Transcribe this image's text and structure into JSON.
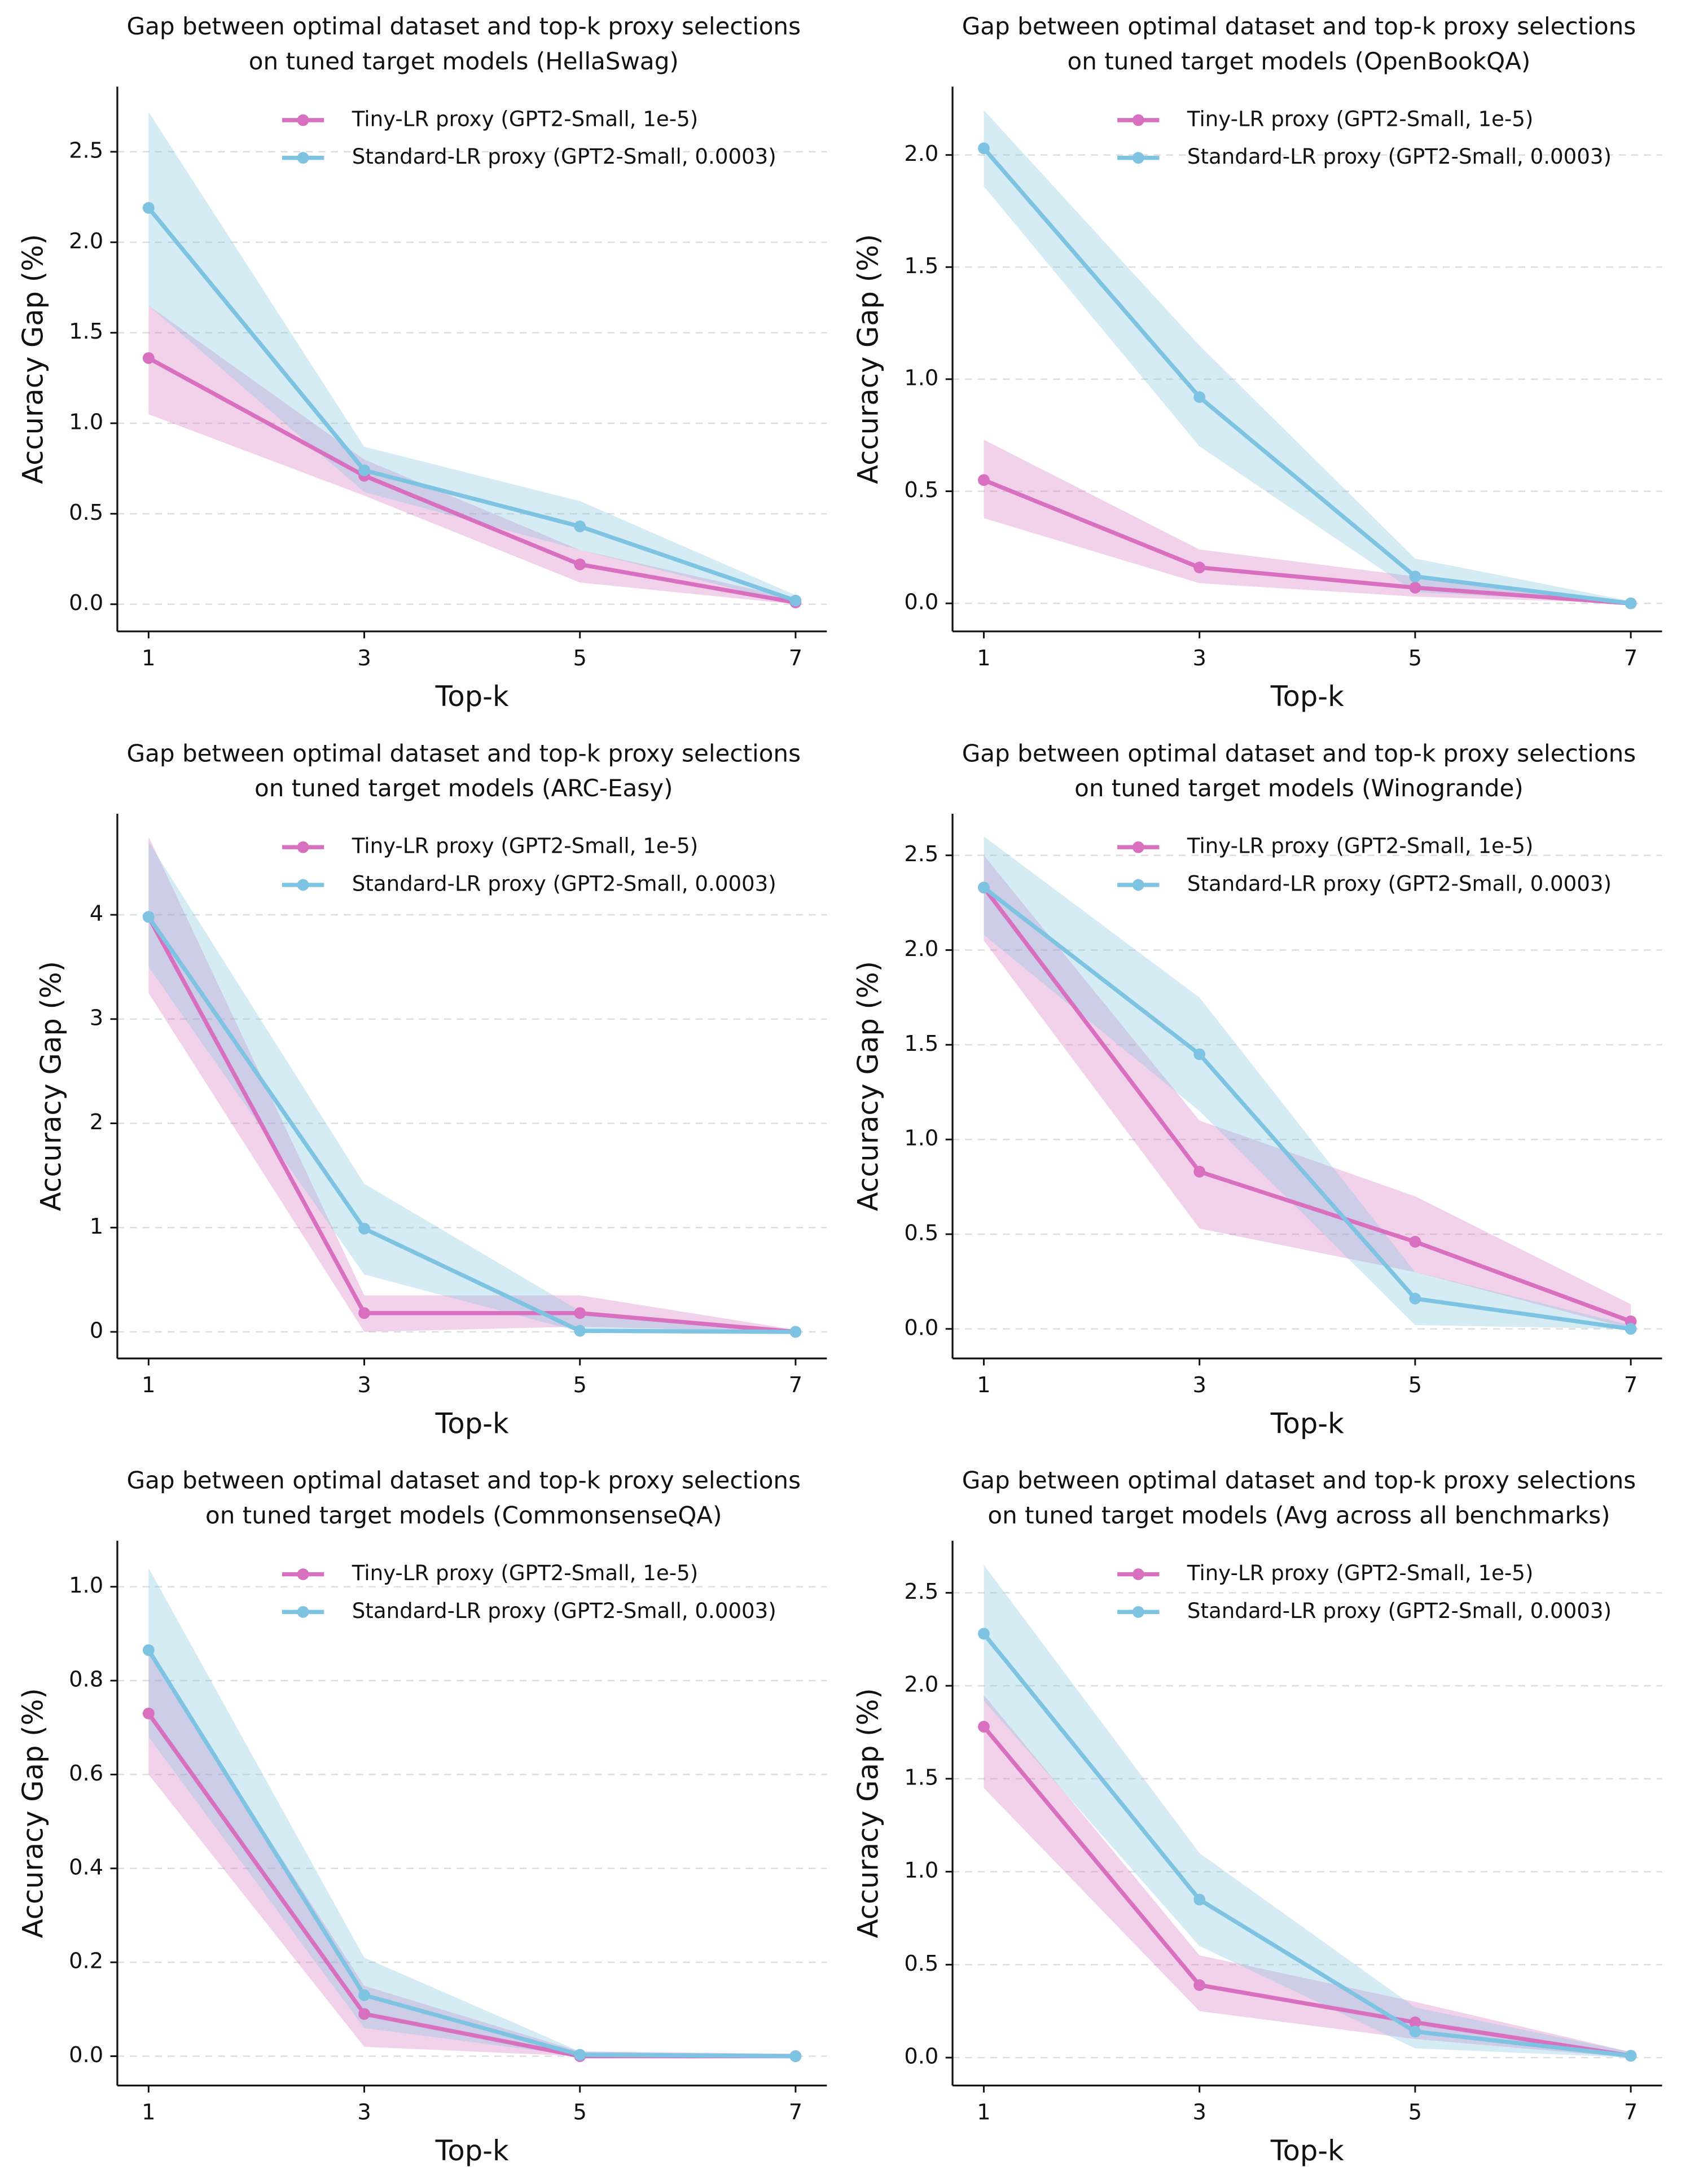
{
  "chart_data": [
    {
      "type": "line",
      "title": [
        "Gap between optimal dataset and top-k proxy selections",
        "on tuned target models (HellaSwag)"
      ],
      "xlabel": "Top-k",
      "ylabel": "Accuracy Gap (%)",
      "legend": "upper center",
      "grid": true,
      "x": [
        1,
        3,
        5,
        7
      ],
      "xlim": [
        0.71,
        7.29
      ],
      "xticks": [
        1,
        3,
        5,
        7
      ],
      "ylim": [
        -0.15,
        2.86
      ],
      "yticks": [
        {
          "value": 0,
          "label": "0.0"
        },
        0.5,
        {
          "value": 1,
          "label": "1.0"
        },
        1.5,
        {
          "value": 2,
          "label": "2.0"
        },
        2.5
      ],
      "series": [
        {
          "name": "Tiny-LR proxy (GPT2-Small, 1e-5)",
          "color": "#d870bf",
          "values": [
            1.36,
            0.71,
            0.22,
            0.01
          ],
          "lower": [
            1.05,
            0.6,
            0.12,
            0
          ],
          "upper": [
            1.65,
            0.8,
            0.3,
            0.03
          ]
        },
        {
          "name": "Standard-LR proxy (GPT2-Small, 0.0003)",
          "color": "#7ec3e1",
          "values": [
            2.19,
            0.74,
            0.43,
            0.02
          ],
          "lower": [
            1.65,
            0.62,
            0.3,
            0
          ],
          "upper": [
            2.72,
            0.87,
            0.57,
            0.05
          ]
        }
      ]
    },
    {
      "type": "line",
      "title": [
        "Gap between optimal dataset and top-k proxy selections",
        "on tuned target models (OpenBookQA)"
      ],
      "xlabel": "Top-k",
      "ylabel": "Accuracy Gap (%)",
      "legend": "upper center",
      "grid": true,
      "x": [
        1,
        3,
        5,
        7
      ],
      "xlim": [
        0.71,
        7.29
      ],
      "xticks": [
        1,
        3,
        5,
        7
      ],
      "ylim": [
        -0.125,
        2.305
      ],
      "yticks": [
        {
          "value": 0,
          "label": "0.0"
        },
        0.5,
        {
          "value": 1,
          "label": "1.0"
        },
        1.5,
        {
          "value": 2,
          "label": "2.0"
        }
      ],
      "series": [
        {
          "name": "Tiny-LR proxy (GPT2-Small, 1e-5)",
          "color": "#d870bf",
          "values": [
            0.55,
            0.16,
            0.07,
            0
          ],
          "lower": [
            0.38,
            0.09,
            0.03,
            0
          ],
          "upper": [
            0.73,
            0.24,
            0.12,
            0.01
          ]
        },
        {
          "name": "Standard-LR proxy (GPT2-Small, 0.0003)",
          "color": "#7ec3e1",
          "values": [
            2.03,
            0.92,
            0.12,
            0
          ],
          "lower": [
            1.86,
            0.7,
            0.05,
            0
          ],
          "upper": [
            2.2,
            1.15,
            0.2,
            0.01
          ]
        }
      ]
    },
    {
      "type": "line",
      "title": [
        "Gap between optimal dataset and top-k proxy selections",
        "on tuned target models (ARC-Easy)"
      ],
      "xlabel": "Top-k",
      "ylabel": "Accuracy Gap (%)",
      "legend": "upper center",
      "grid": true,
      "x": [
        1,
        3,
        5,
        7
      ],
      "xlim": [
        0.71,
        7.29
      ],
      "xticks": [
        1,
        3,
        5,
        7
      ],
      "ylim": [
        -0.255,
        4.97
      ],
      "yticks": [
        0,
        1,
        2,
        3,
        4
      ],
      "series": [
        {
          "name": "Tiny-LR proxy (GPT2-Small, 1e-5)",
          "color": "#d870bf",
          "values": [
            3.98,
            0.18,
            0.18,
            0
          ],
          "lower": [
            3.25,
            0,
            0.05,
            0
          ],
          "upper": [
            4.75,
            0.35,
            0.35,
            0.02
          ]
        },
        {
          "name": "Standard-LR proxy (GPT2-Small, 0.0003)",
          "color": "#7ec3e1",
          "values": [
            3.98,
            0.99,
            0.01,
            0
          ],
          "lower": [
            3.5,
            0.55,
            0,
            0
          ],
          "upper": [
            4.7,
            1.42,
            0.2,
            0.02
          ]
        }
      ]
    },
    {
      "type": "line",
      "title": [
        "Gap between optimal dataset and top-k proxy selections",
        "on tuned target models (Winogrande)"
      ],
      "xlabel": "Top-k",
      "ylabel": "Accuracy Gap (%)",
      "legend": "upper center",
      "grid": true,
      "x": [
        1,
        3,
        5,
        7
      ],
      "xlim": [
        0.71,
        7.29
      ],
      "xticks": [
        1,
        3,
        5,
        7
      ],
      "ylim": [
        -0.156,
        2.72
      ],
      "yticks": [
        {
          "value": 0,
          "label": "0.0"
        },
        0.5,
        {
          "value": 1,
          "label": "1.0"
        },
        1.5,
        {
          "value": 2,
          "label": "2.0"
        },
        2.5
      ],
      "series": [
        {
          "name": "Tiny-LR proxy (GPT2-Small, 1e-5)",
          "color": "#d870bf",
          "values": [
            2.33,
            0.83,
            0.46,
            0.04
          ],
          "lower": [
            2.05,
            0.53,
            0.3,
            0
          ],
          "upper": [
            2.5,
            1.1,
            0.7,
            0.13
          ]
        },
        {
          "name": "Standard-LR proxy (GPT2-Small, 0.0003)",
          "color": "#7ec3e1",
          "values": [
            2.33,
            1.45,
            0.16,
            0
          ],
          "lower": [
            2.08,
            1.15,
            0.02,
            0
          ],
          "upper": [
            2.6,
            1.75,
            0.3,
            0.02
          ]
        }
      ]
    },
    {
      "type": "line",
      "title": [
        "Gap between optimal dataset and top-k proxy selections",
        "on tuned target models (CommonsenseQA)"
      ],
      "xlabel": "Top-k",
      "ylabel": "Accuracy Gap (%)",
      "legend": "upper center",
      "grid": true,
      "x": [
        1,
        3,
        5,
        7
      ],
      "xlim": [
        0.71,
        7.29
      ],
      "xticks": [
        1,
        3,
        5,
        7
      ],
      "ylim": [
        -0.0625,
        1.098
      ],
      "yticks": [
        {
          "value": 0,
          "label": "0.0"
        },
        0.2,
        0.4,
        0.6,
        0.8,
        {
          "value": 1,
          "label": "1.0"
        }
      ],
      "series": [
        {
          "name": "Tiny-LR proxy (GPT2-Small, 1e-5)",
          "color": "#d870bf",
          "values": [
            0.73,
            0.09,
            0,
            0
          ],
          "lower": [
            0.6,
            0.02,
            0,
            0
          ],
          "upper": [
            0.86,
            0.15,
            0.01,
            0.005
          ]
        },
        {
          "name": "Standard-LR proxy (GPT2-Small, 0.0003)",
          "color": "#7ec3e1",
          "values": [
            0.865,
            0.13,
            0.003,
            0
          ],
          "lower": [
            0.68,
            0.06,
            0,
            0
          ],
          "upper": [
            1.04,
            0.21,
            0.01,
            0.005
          ]
        }
      ]
    },
    {
      "type": "line",
      "title": [
        "Gap between optimal dataset and top-k proxy selections",
        "on tuned target models (Avg across all benchmarks)"
      ],
      "xlabel": "Top-k",
      "ylabel": "Accuracy Gap (%)",
      "legend": "upper center",
      "grid": true,
      "x": [
        1,
        3,
        5,
        7
      ],
      "xlim": [
        0.71,
        7.29
      ],
      "xticks": [
        1,
        3,
        5,
        7
      ],
      "ylim": [
        -0.15,
        2.78
      ],
      "yticks": [
        {
          "value": 0,
          "label": "0.0"
        },
        0.5,
        {
          "value": 1,
          "label": "1.0"
        },
        1.5,
        {
          "value": 2,
          "label": "2.0"
        },
        2.5
      ],
      "series": [
        {
          "name": "Tiny-LR proxy (GPT2-Small, 1e-5)",
          "color": "#d870bf",
          "values": [
            1.78,
            0.39,
            0.19,
            0.01
          ],
          "lower": [
            1.45,
            0.25,
            0.1,
            0
          ],
          "upper": [
            1.95,
            0.55,
            0.3,
            0.03
          ]
        },
        {
          "name": "Standard-LR proxy (GPT2-Small, 0.0003)",
          "color": "#7ec3e1",
          "values": [
            2.28,
            0.85,
            0.14,
            0.01
          ],
          "lower": [
            1.92,
            0.6,
            0.05,
            0
          ],
          "upper": [
            2.65,
            1.1,
            0.27,
            0.03
          ]
        }
      ]
    }
  ]
}
